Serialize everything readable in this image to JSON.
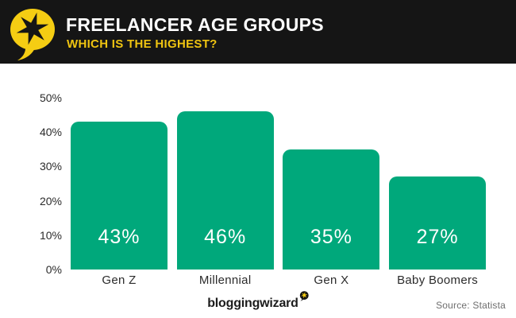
{
  "header": {
    "title": "FREELANCER AGE GROUPS",
    "subtitle": "WHICH IS THE HIGHEST?",
    "logo_icon": "speech-bubble-with-star"
  },
  "chart_data": {
    "type": "bar",
    "title": "Freelancer Age Groups",
    "subtitle": "Which is the highest?",
    "categories": [
      "Gen Z",
      "Millennial",
      "Gen X",
      "Baby Boomers"
    ],
    "values": [
      43,
      46,
      35,
      27
    ],
    "value_labels": [
      "43%",
      "46%",
      "35%",
      "27%"
    ],
    "xlabel": "",
    "ylabel": "",
    "ylim": [
      0,
      50
    ],
    "ytick_values": [
      0,
      10,
      20,
      30,
      40,
      50
    ],
    "yticks": [
      "0%",
      "10%",
      "20%",
      "30%",
      "40%",
      "50%"
    ],
    "grid": false,
    "legend": false,
    "bar_color": "#00A87B",
    "value_label_color": "#FFFFFF"
  },
  "footer": {
    "brand": "bloggingwizard",
    "brand_badge_icon": "speech-bubble-with-star",
    "source": "Source: Statista"
  },
  "colors": {
    "header_bg": "#151515",
    "accent_yellow": "#EFC411",
    "logo_yellow": "#F5CD13",
    "bar_green": "#00A87B",
    "text_dark": "#2B2B2B",
    "source_gray": "#6E6E6E"
  }
}
